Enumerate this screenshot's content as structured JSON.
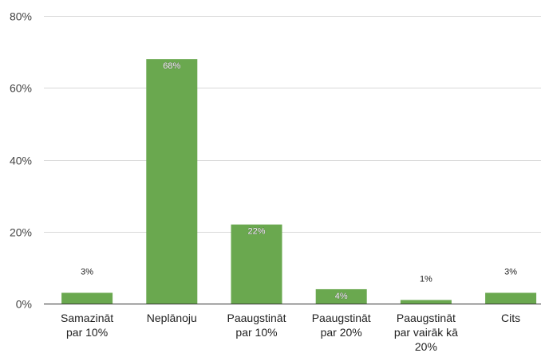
{
  "chart_data": {
    "type": "bar",
    "categories": [
      [
        "Samazināt",
        "par 10%"
      ],
      [
        "Neplānoju"
      ],
      [
        "Paaugstināt",
        "par 10%"
      ],
      [
        "Paaugstināt",
        "par 20%"
      ],
      [
        "Paaugstināt",
        "par vairāk kā",
        "20%"
      ],
      [
        "Cits"
      ]
    ],
    "values": [
      3,
      68,
      22,
      4,
      1,
      3
    ],
    "data_labels": [
      "3%",
      "68%",
      "22%",
      "4%",
      "1%",
      "3%"
    ],
    "y_ticks": [
      {
        "value": 0,
        "label": "0%"
      },
      {
        "value": 20,
        "label": "20%"
      },
      {
        "value": 40,
        "label": "40%"
      },
      {
        "value": 60,
        "label": "60%"
      },
      {
        "value": 80,
        "label": "80%"
      }
    ],
    "ylim": [
      0,
      80
    ],
    "grid": true,
    "legend": "none",
    "title": "",
    "xlabel": "",
    "ylabel": "",
    "colors": {
      "bar": "#6aa84f",
      "grid": "#d9d9d9",
      "axis": "#333333"
    }
  }
}
